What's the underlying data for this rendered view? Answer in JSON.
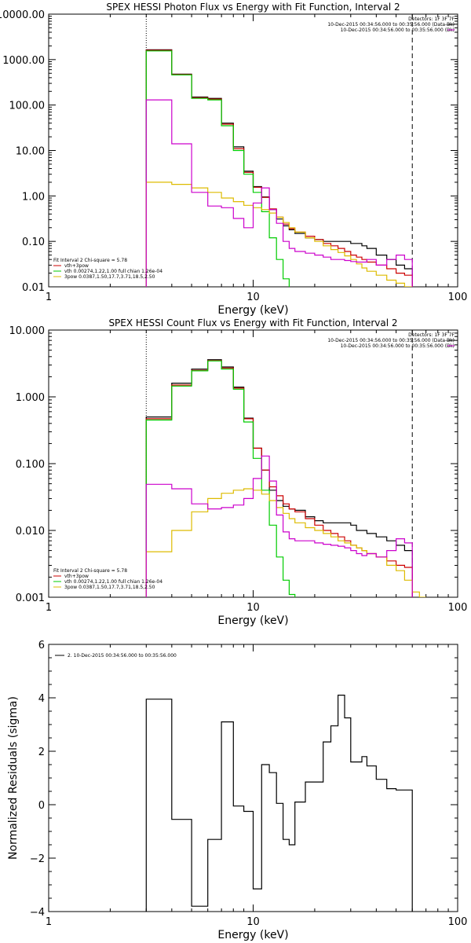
{
  "chart_data": [
    {
      "type": "line",
      "title": "SPEX HESSI Photon Flux vs Energy with Fit Function, Interval 2",
      "xlabel": "Energy (keV)",
      "ylabel": "",
      "xscale": "log",
      "yscale": "log",
      "xlim": [
        1,
        100
      ],
      "ylim": [
        0.01,
        10000
      ],
      "xticks": [
        1,
        10,
        100
      ],
      "xtick_labels": [
        "1",
        "10",
        "100"
      ],
      "yticks": [
        0.01,
        0.1,
        1,
        10,
        100,
        1000,
        10000
      ],
      "ytick_labels": [
        "0.01",
        "0.10",
        "1.00",
        "10.00",
        "100.00",
        "1000.00",
        "10000.00"
      ],
      "vlines": [
        {
          "x": 3,
          "style": "dotted"
        },
        {
          "x": 60,
          "style": "dashed"
        }
      ],
      "legend_topright": [
        {
          "text": "Detectors: 1F 3F 7F",
          "color": "#000000"
        },
        {
          "text": "10-Dec-2015 00:34:56.000 to 00:35:56.000 (Data-Bk)",
          "color": "#000000"
        },
        {
          "text": "10-Dec-2015 00:34:56.000 to 00:35:56.000 (Bk)",
          "color": "#cc00cc"
        }
      ],
      "legend_bottomleft": [
        {
          "text": "Fit Interval 2   Chi-square = 5.78",
          "color": "#000000"
        },
        {
          "text": "vth+3pow",
          "color": "#cc0000"
        },
        {
          "text": "vth 0.00274,1.22,1.00  full chian 1.26e-04",
          "color": "#00cc00"
        },
        {
          "text": "3pow 0.0387,1.50,17.7,3.71,18.5,2.50",
          "color": "#ddbb00"
        }
      ],
      "series": [
        {
          "name": "10-Dec-2015 00:34:56.000 to 00:35:56.000 (Data-Bk)",
          "color": "#000000",
          "edges": [
            3,
            4,
            5,
            6,
            7,
            8,
            9,
            10,
            11,
            12,
            13,
            14,
            15,
            16,
            18,
            20,
            22,
            24,
            26,
            28,
            30,
            32,
            34,
            36,
            40,
            45,
            50,
            55,
            60
          ],
          "values": [
            1650,
            480,
            150,
            140,
            40,
            12,
            3.5,
            1.6,
            0.95,
            0.5,
            0.31,
            0.22,
            0.18,
            0.15,
            0.12,
            0.11,
            0.1,
            0.1,
            0.1,
            0.1,
            0.09,
            0.09,
            0.08,
            0.07,
            0.05,
            0.04,
            0.03,
            0.025
          ]
        },
        {
          "name": "vth+3pow",
          "color": "#cc0000",
          "edges": [
            3,
            4,
            5,
            6,
            7,
            8,
            9,
            10,
            11,
            12,
            13,
            14,
            15,
            16,
            18,
            20,
            22,
            24,
            26,
            28,
            30,
            32,
            34,
            36,
            40,
            45,
            50,
            55,
            60
          ],
          "values": [
            1600,
            470,
            145,
            135,
            38,
            11,
            3.3,
            1.55,
            0.93,
            0.52,
            0.34,
            0.24,
            0.19,
            0.16,
            0.13,
            0.11,
            0.09,
            0.08,
            0.07,
            0.06,
            0.05,
            0.045,
            0.04,
            0.035,
            0.03,
            0.025,
            0.02,
            0.018
          ]
        },
        {
          "name": "vth",
          "color": "#00cc00",
          "edges": [
            3,
            4,
            5,
            6,
            7,
            8,
            9,
            10,
            11,
            12,
            13,
            14,
            15,
            16
          ],
          "values": [
            1550,
            460,
            140,
            130,
            35,
            10,
            3,
            1.2,
            0.45,
            0.12,
            0.04,
            0.015,
            0.008
          ]
        },
        {
          "name": "3pow",
          "color": "#ddbb00",
          "edges": [
            3,
            4,
            5,
            6,
            7,
            8,
            9,
            10,
            11,
            12,
            13,
            14,
            15,
            16,
            18,
            20,
            22,
            24,
            26,
            28,
            30,
            32,
            34,
            36,
            40,
            45,
            50,
            55,
            60
          ],
          "values": [
            2,
            1.8,
            1.5,
            1.2,
            0.9,
            0.75,
            0.62,
            0.55,
            0.5,
            0.42,
            0.34,
            0.26,
            0.2,
            0.16,
            0.12,
            0.1,
            0.08,
            0.066,
            0.057,
            0.048,
            0.04,
            0.032,
            0.026,
            0.022,
            0.018,
            0.014,
            0.012,
            0.01
          ]
        },
        {
          "name": "10-Dec-2015 00:34:56.000 to 00:35:56.000 (Bk)",
          "color": "#cc00cc",
          "edges": [
            3,
            4,
            5,
            6,
            7,
            8,
            9,
            10,
            11,
            12,
            13,
            14,
            15,
            16,
            18,
            20,
            22,
            24,
            26,
            28,
            30,
            32,
            34,
            36,
            40,
            45,
            50,
            55,
            60
          ],
          "values": [
            130,
            14,
            1.2,
            0.6,
            0.55,
            0.32,
            0.2,
            0.7,
            1.5,
            0.5,
            0.25,
            0.1,
            0.07,
            0.06,
            0.055,
            0.05,
            0.045,
            0.04,
            0.04,
            0.038,
            0.036,
            0.035,
            0.035,
            0.04,
            0.03,
            0.04,
            0.05,
            0.04
          ]
        }
      ]
    },
    {
      "type": "line",
      "title": "SPEX HESSI Count Flux vs Energy with Fit Function, Interval 2",
      "xlabel": "Energy (keV)",
      "ylabel": "",
      "xscale": "log",
      "yscale": "log",
      "xlim": [
        1,
        100
      ],
      "ylim": [
        0.001,
        10
      ],
      "xticks": [
        1,
        10,
        100
      ],
      "xtick_labels": [
        "1",
        "10",
        "100"
      ],
      "yticks": [
        0.001,
        0.01,
        0.1,
        1,
        10
      ],
      "ytick_labels": [
        "0.001",
        "0.010",
        "0.100",
        "1.000",
        "10.000"
      ],
      "vlines": [
        {
          "x": 3,
          "style": "dotted"
        },
        {
          "x": 60,
          "style": "dashed"
        }
      ],
      "legend_topright": [
        {
          "text": "Detectors: 1F 3F 7F",
          "color": "#000000"
        },
        {
          "text": "10-Dec-2015 00:34:56.000 to 00:35:56.000 (Data-Bk)",
          "color": "#000000"
        },
        {
          "text": "10-Dec-2015 00:34:56.000 to 00:35:56.000 (Bk)",
          "color": "#cc00cc"
        }
      ],
      "legend_bottomleft": [
        {
          "text": "Fit Interval 2   Chi-square = 5.78",
          "color": "#000000"
        },
        {
          "text": "vth+3pow",
          "color": "#cc0000"
        },
        {
          "text": "vth 0.00274,1.22,1.00  full chian 1.26e-04",
          "color": "#00cc00"
        },
        {
          "text": "3pow 0.0387,1.50,17.7,3.71,18.5,2.50",
          "color": "#ddbb00"
        }
      ],
      "series": [
        {
          "name": "10-Dec-2015 00:34:56.000 to 00:35:56.000 (Data-Bk)",
          "color": "#000000",
          "edges": [
            3,
            4,
            5,
            6,
            7,
            8,
            9,
            10,
            11,
            12,
            13,
            14,
            15,
            16,
            18,
            20,
            22,
            24,
            26,
            28,
            30,
            32,
            34,
            36,
            40,
            45,
            50,
            55,
            60
          ],
          "values": [
            0.5,
            1.6,
            2.6,
            3.6,
            2.8,
            1.4,
            0.48,
            0.17,
            0.08,
            0.04,
            0.028,
            0.023,
            0.021,
            0.02,
            0.016,
            0.014,
            0.013,
            0.013,
            0.013,
            0.013,
            0.012,
            0.01,
            0.01,
            0.009,
            0.008,
            0.007,
            0.006,
            0.005
          ]
        },
        {
          "name": "vth+3pow",
          "color": "#cc0000",
          "edges": [
            3,
            4,
            5,
            6,
            7,
            8,
            9,
            10,
            11,
            12,
            13,
            14,
            15,
            16,
            18,
            20,
            22,
            24,
            26,
            28,
            30,
            32,
            34,
            36,
            40,
            45,
            50,
            55,
            60
          ],
          "values": [
            0.47,
            1.5,
            2.5,
            3.5,
            2.7,
            1.35,
            0.47,
            0.17,
            0.08,
            0.045,
            0.033,
            0.025,
            0.021,
            0.019,
            0.015,
            0.012,
            0.01,
            0.009,
            0.008,
            0.007,
            0.006,
            0.0055,
            0.005,
            0.0045,
            0.004,
            0.0035,
            0.003,
            0.0028
          ]
        },
        {
          "name": "vth",
          "color": "#00cc00",
          "edges": [
            3,
            4,
            5,
            6,
            7,
            8,
            9,
            10,
            11,
            12,
            13,
            14,
            15,
            16
          ],
          "values": [
            0.45,
            1.45,
            2.45,
            3.45,
            2.6,
            1.3,
            0.42,
            0.12,
            0.04,
            0.012,
            0.004,
            0.0018,
            0.0011
          ]
        },
        {
          "name": "3pow",
          "color": "#ddbb00",
          "edges": [
            3,
            4,
            5,
            6,
            7,
            8,
            9,
            10,
            11,
            12,
            13,
            14,
            15,
            16,
            18,
            20,
            22,
            24,
            26,
            28,
            30,
            32,
            34,
            36,
            40,
            45,
            50,
            55,
            60,
            65,
            70
          ],
          "values": [
            0.0048,
            0.01,
            0.019,
            0.03,
            0.036,
            0.04,
            0.042,
            0.04,
            0.035,
            0.028,
            0.022,
            0.018,
            0.015,
            0.013,
            0.011,
            0.01,
            0.009,
            0.008,
            0.007,
            0.0065,
            0.006,
            0.0055,
            0.005,
            0.0045,
            0.004,
            0.003,
            0.0025,
            0.0018,
            0.0012,
            0.001
          ]
        },
        {
          "name": "10-Dec-2015 00:34:56.000 to 00:35:56.000 (Bk)",
          "color": "#cc00cc",
          "edges": [
            3,
            4,
            5,
            6,
            7,
            8,
            9,
            10,
            11,
            12,
            13,
            14,
            15,
            16,
            18,
            20,
            22,
            24,
            26,
            28,
            30,
            32,
            34,
            36,
            40,
            45,
            50,
            55,
            60
          ],
          "values": [
            0.049,
            0.042,
            0.025,
            0.021,
            0.022,
            0.024,
            0.03,
            0.06,
            0.13,
            0.055,
            0.017,
            0.0095,
            0.0075,
            0.007,
            0.007,
            0.0065,
            0.0062,
            0.006,
            0.0058,
            0.0055,
            0.005,
            0.0045,
            0.0042,
            0.0045,
            0.004,
            0.005,
            0.0075,
            0.0065
          ]
        }
      ]
    },
    {
      "type": "line",
      "title": "",
      "xlabel": "Energy (keV)",
      "ylabel": "Normalized Residuals (sigma)",
      "xscale": "log",
      "yscale": "linear",
      "xlim": [
        1,
        100
      ],
      "ylim": [
        -4,
        6
      ],
      "xticks": [
        1,
        10,
        100
      ],
      "xtick_labels": [
        "1",
        "10",
        "100"
      ],
      "yticks": [
        -4,
        -2,
        0,
        2,
        4,
        6
      ],
      "ytick_labels": [
        "−4",
        "−2",
        "0",
        "2",
        "4",
        "6"
      ],
      "legend_topleft": [
        {
          "text": "2. 10-Dec-2015 00:34:56.000 to 00:35:56.000",
          "color": "#000000"
        }
      ],
      "series": [
        {
          "name": "2. 10-Dec-2015 00:34:56.000 to 00:35:56.000",
          "color": "#000000",
          "edges": [
            3,
            4,
            5,
            6,
            7,
            8,
            9,
            10,
            11,
            12,
            13,
            14,
            15,
            16,
            18,
            20,
            22,
            24,
            26,
            28,
            30,
            32,
            34,
            36,
            40,
            45,
            50,
            55,
            60
          ],
          "values": [
            3.95,
            -0.55,
            -3.8,
            -1.3,
            3.1,
            -0.05,
            -0.25,
            -3.15,
            1.5,
            1.2,
            0.05,
            -1.3,
            -1.5,
            0.1,
            0.85,
            0.85,
            2.35,
            2.95,
            4.1,
            3.25,
            1.6,
            1.6,
            1.8,
            1.45,
            0.95,
            0.6,
            0.55,
            0.55
          ]
        }
      ]
    }
  ]
}
